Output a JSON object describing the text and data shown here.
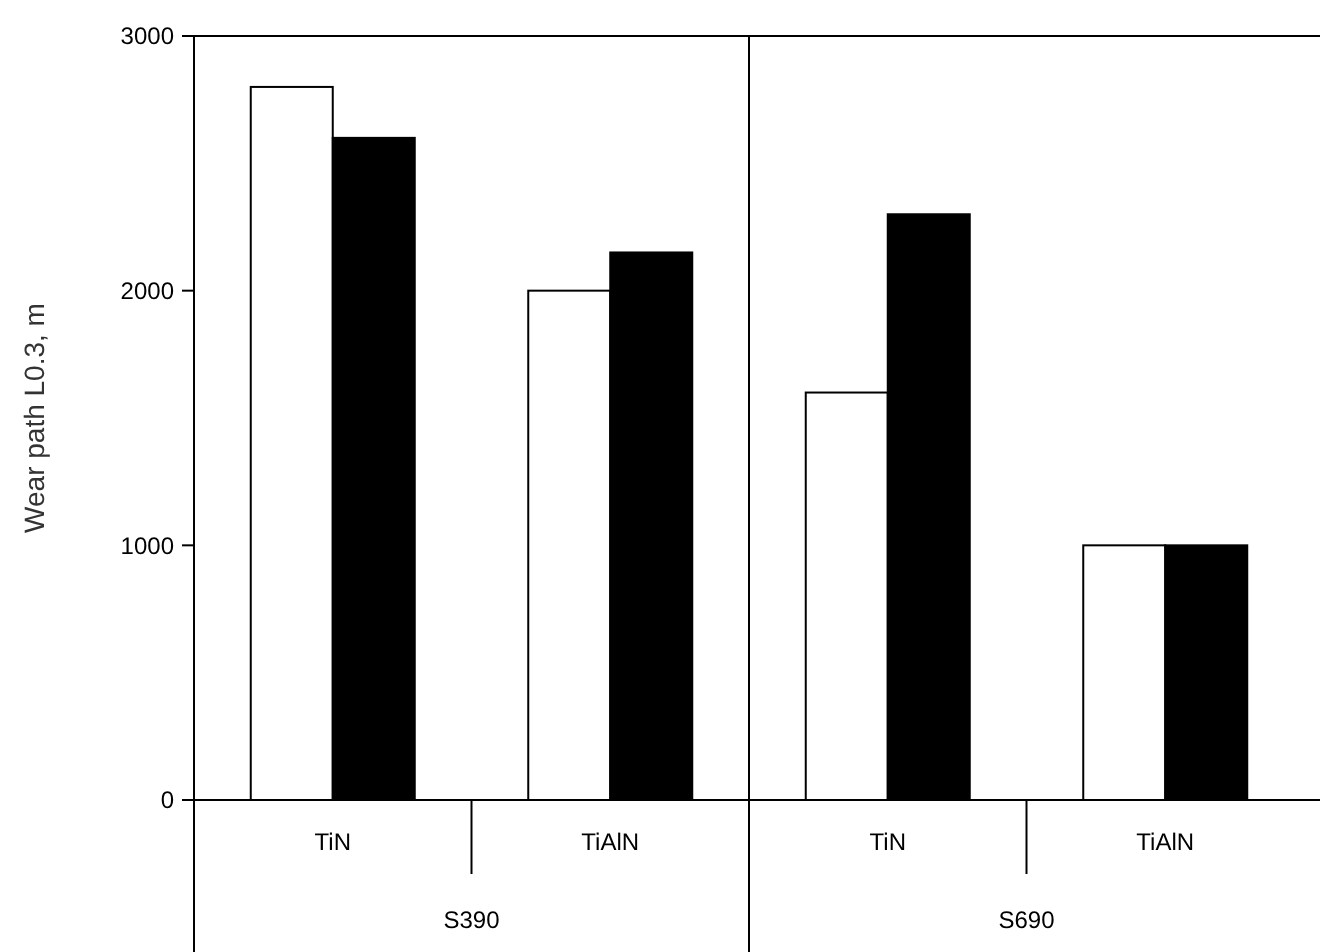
{
  "chart_data": {
    "type": "bar",
    "ylabel": "Wear path L0.3, m",
    "categories": [
      "TiN",
      "TiAlN",
      "TiN",
      "TiAlN"
    ],
    "series": [
      {
        "color": "#ffffff",
        "values": [
          2800,
          2000,
          1600,
          1000
        ]
      },
      {
        "color": "#000000",
        "values": [
          2600,
          2150,
          2300,
          1000
        ]
      }
    ],
    "ylim": [
      0,
      3000
    ],
    "yticks": [
      0,
      1000,
      2000,
      3000
    ],
    "grid": false,
    "annotations": [
      "S390",
      "S690"
    ]
  }
}
